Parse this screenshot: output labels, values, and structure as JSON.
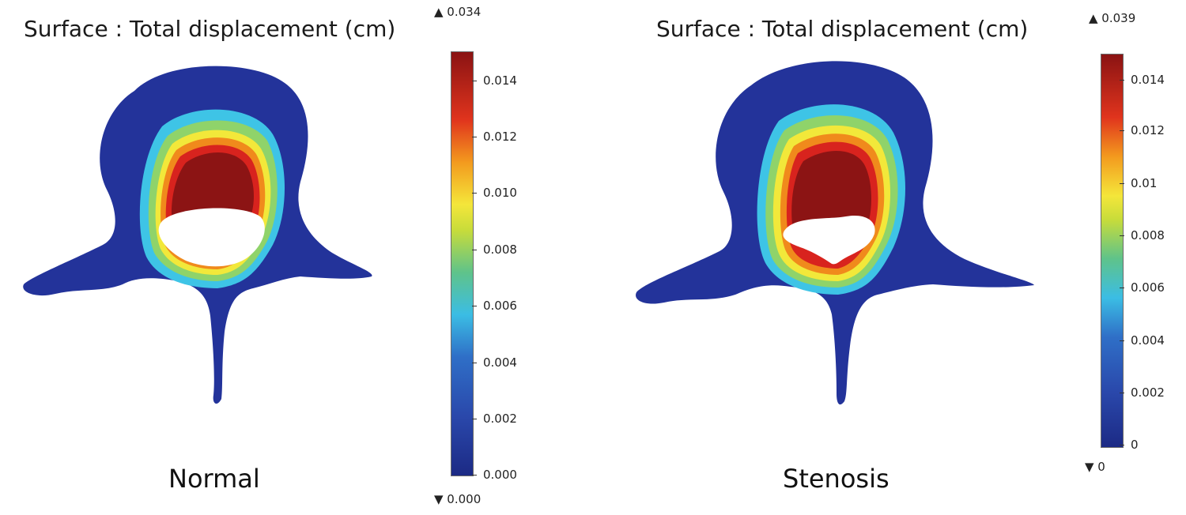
{
  "colors": {
    "deep_blue": "#1f2f8a",
    "blue": "#2c4fb0",
    "cyan": "#3ec4e6",
    "green": "#6cc36f",
    "yellow": "#f2e83a",
    "orange": "#f08a1c",
    "red": "#d8231e",
    "dark_red": "#8c1414"
  },
  "panels": [
    {
      "title": "Surface : Total displacement (cm)",
      "label": "Normal",
      "colorbar": {
        "max_marker": "▲ 0.034",
        "min_marker": "▼ 0.000",
        "ticks": [
          "0.014",
          "0.012",
          "0.010",
          "0.008",
          "0.006",
          "0.004",
          "0.002",
          "0.000"
        ]
      }
    },
    {
      "title": "Surface : Total displacement (cm)",
      "label": "Stenosis",
      "colorbar": {
        "max_marker": "▲ 0.039",
        "min_marker": "▼ 0",
        "ticks": [
          "0.014",
          "0.012",
          "0.01",
          "0.008",
          "0.006",
          "0.004",
          "0.002",
          "0"
        ]
      }
    }
  ]
}
